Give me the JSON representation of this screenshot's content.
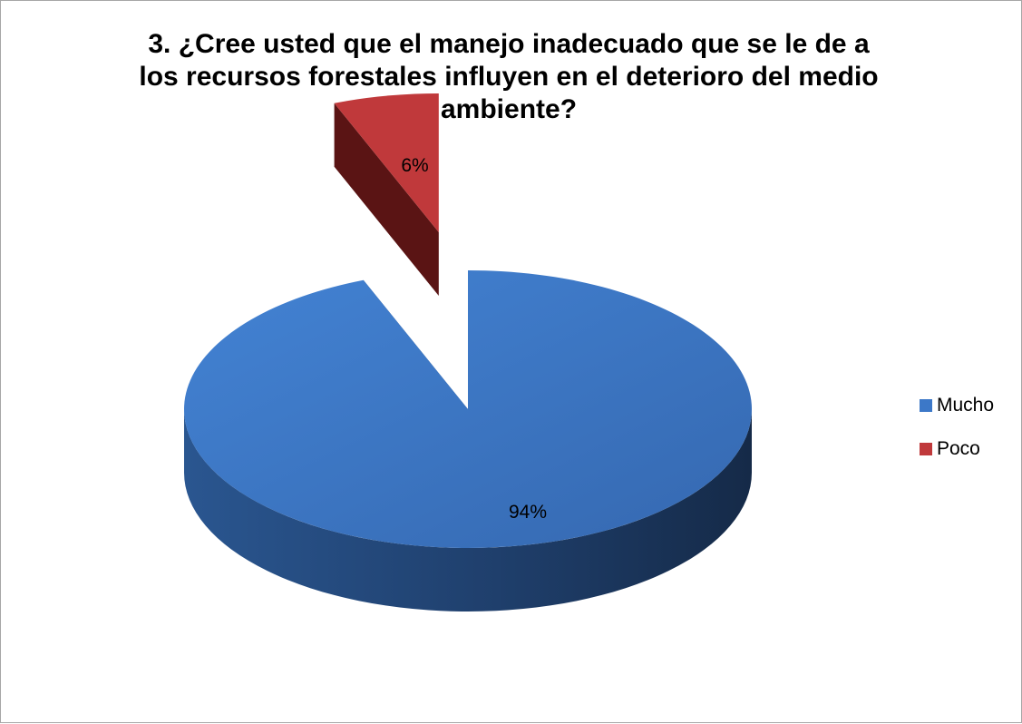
{
  "chart_data": {
    "type": "pie",
    "title": "3. ¿Cree usted que el manejo inadecuado que se le de a\nlos recursos forestales influyen en el deterioro del medio\nambiente?",
    "categories": [
      "Mucho",
      "Poco"
    ],
    "values": [
      94,
      6
    ],
    "labels": [
      "94%",
      "6%"
    ],
    "colors": [
      "#3c78c8",
      "#c0393b"
    ],
    "exploded": "Poco",
    "legend": "right",
    "style": "3d"
  }
}
